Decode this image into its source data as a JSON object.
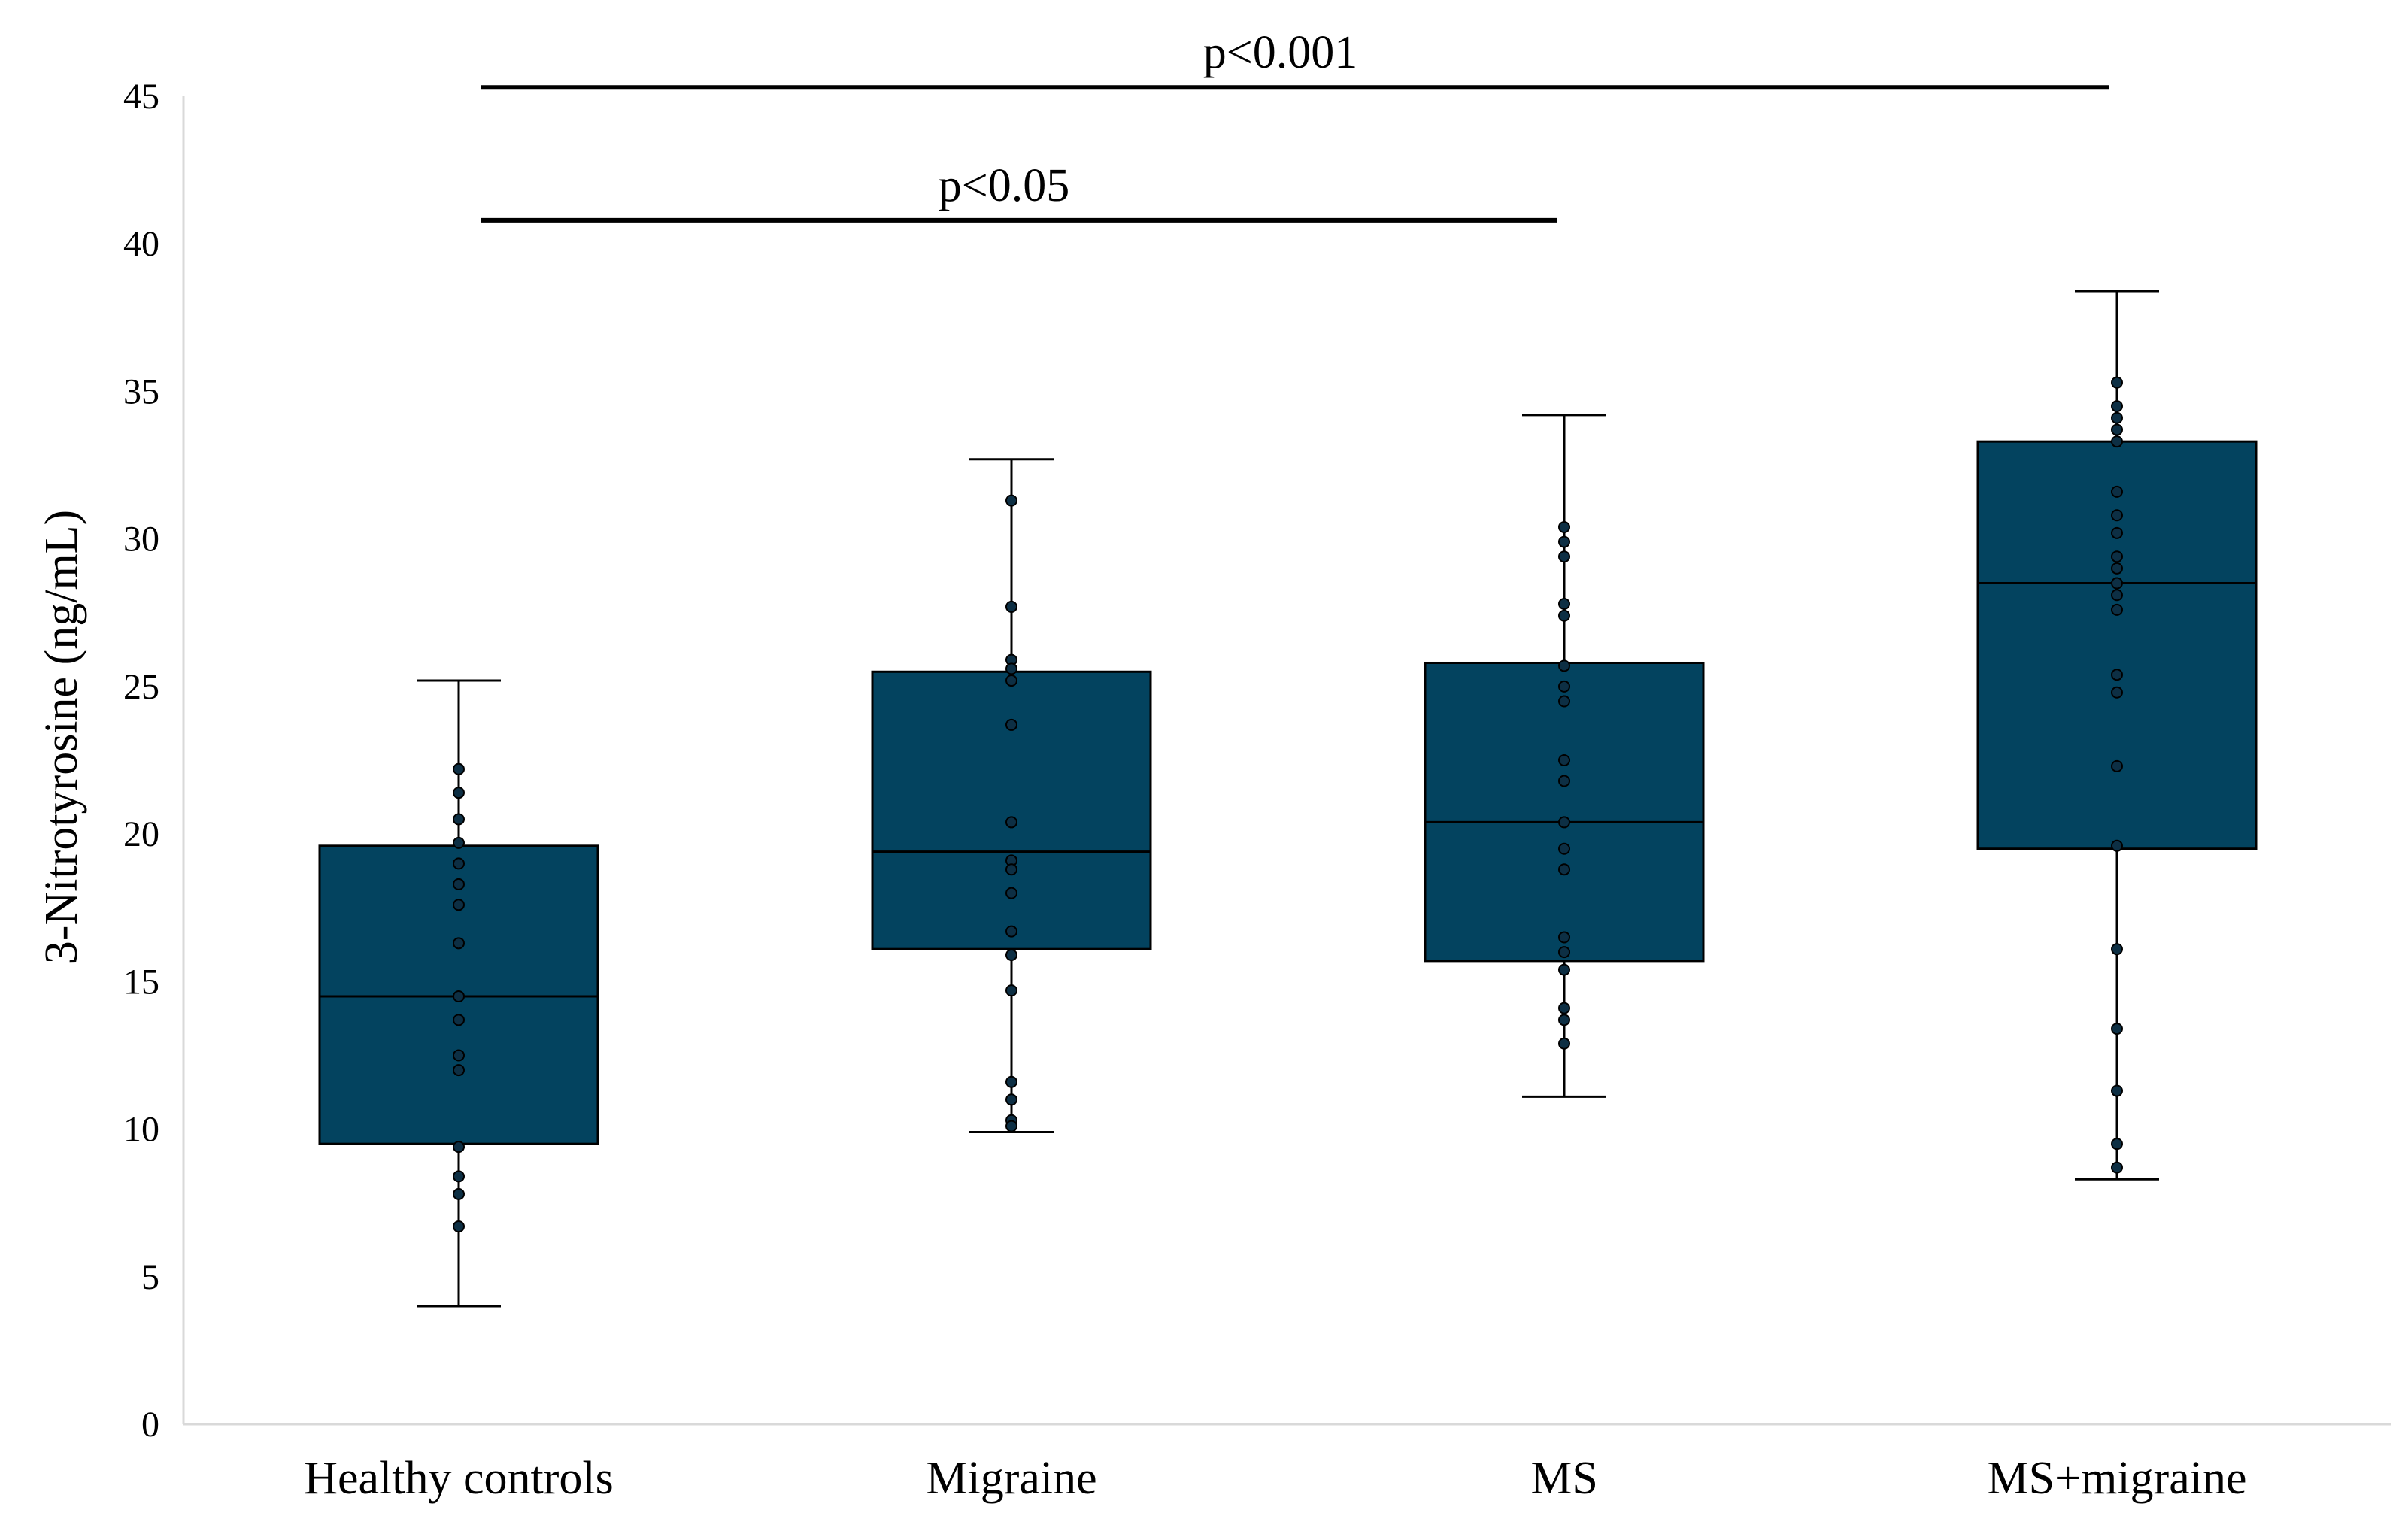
{
  "chart_data": {
    "type": "box",
    "title": "",
    "xlabel": "",
    "ylabel": "3-Nitrotyrosine (ng/mL)",
    "ylim": [
      0,
      45
    ],
    "yticks": [
      0,
      5,
      10,
      15,
      20,
      25,
      30,
      35,
      40,
      45
    ],
    "categories": [
      "Healthy controls",
      "Migraine",
      "MS",
      "MS+migraine"
    ],
    "box_color": "#03435f",
    "point_color": "#0d2f44",
    "groups": [
      {
        "name": "Healthy controls",
        "min": 4.0,
        "q1": 9.5,
        "median": 14.5,
        "q3": 19.6,
        "max": 25.2,
        "points": [
          22.2,
          21.4,
          20.5,
          19.7,
          19.0,
          18.3,
          17.6,
          16.3,
          14.5,
          13.7,
          12.5,
          12.0,
          9.4,
          8.4,
          7.8,
          6.7
        ]
      },
      {
        "name": "Migraine",
        "min": 9.9,
        "q1": 16.1,
        "median": 19.4,
        "q3": 25.5,
        "max": 32.7,
        "points": [
          31.3,
          27.7,
          25.9,
          25.6,
          25.2,
          23.7,
          20.4,
          19.1,
          18.8,
          18.0,
          16.7,
          15.9,
          14.7,
          11.6,
          11.0,
          10.3,
          10.1
        ]
      },
      {
        "name": "MS",
        "min": 11.1,
        "q1": 15.7,
        "median": 20.4,
        "q3": 25.8,
        "max": 34.2,
        "points": [
          30.4,
          29.9,
          29.4,
          27.8,
          27.4,
          25.7,
          25.0,
          24.5,
          22.5,
          21.8,
          20.4,
          19.5,
          18.8,
          16.5,
          16.0,
          15.4,
          14.1,
          13.7,
          12.9
        ]
      },
      {
        "name": "MS+migraine",
        "min": 8.3,
        "q1": 19.5,
        "median": 28.5,
        "q3": 33.3,
        "max": 38.4,
        "points": [
          35.3,
          34.5,
          34.1,
          33.7,
          33.3,
          31.6,
          30.8,
          30.2,
          29.4,
          29.0,
          28.5,
          28.1,
          27.6,
          25.4,
          24.8,
          22.3,
          19.6,
          16.1,
          13.4,
          11.3,
          9.5,
          8.7
        ]
      }
    ],
    "significance": [
      {
        "label": "p<0.001",
        "from": "Healthy controls",
        "to": "MS+migraine",
        "y": 45.3
      },
      {
        "label": "p<0.05",
        "from": "Healthy controls",
        "to": "MS",
        "y": 40.8
      }
    ]
  }
}
